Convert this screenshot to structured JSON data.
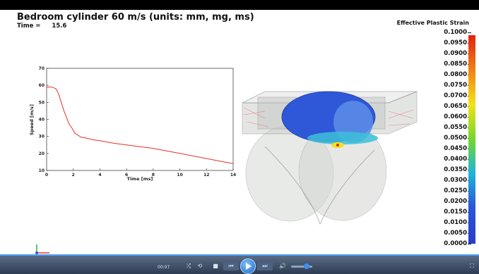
{
  "window": {
    "title": "Bedroom cylinder 60 m/s (units: mm, mg, ms)"
  },
  "time": {
    "label": "Time =",
    "value": "15.6"
  },
  "legend": {
    "title": "Effective Plastic Strain",
    "labels": [
      "0.1000",
      "0.0950",
      "0.0900",
      "0.0850",
      "0.0800",
      "0.0750",
      "0.0700",
      "0.0650",
      "0.0600",
      "0.0550",
      "0.0500",
      "0.0450",
      "0.0400",
      "0.0350",
      "0.0300",
      "0.0250",
      "0.0200",
      "0.0150",
      "0.0100",
      "0.0050",
      "0.0000"
    ],
    "colors": {
      "high": "#e32212",
      "mid": "#73d62e",
      "low": "#2a3cc8"
    }
  },
  "chart_data": {
    "type": "line",
    "title": "",
    "xlabel": "Time [ms]",
    "ylabel": "Speed [m/s]",
    "xlim": [
      0,
      14
    ],
    "ylim": [
      10,
      70
    ],
    "xticks": [
      "0",
      "2",
      "4",
      "6",
      "8",
      "10",
      "12",
      "14"
    ],
    "yticks": [
      "10",
      "20",
      "30",
      "40",
      "50",
      "60",
      "70"
    ],
    "grid": false,
    "series": [
      {
        "color": "#e8302a",
        "x": [
          0,
          0.4,
          0.7,
          0.9,
          1.1,
          1.3,
          1.5,
          1.7,
          1.9,
          2.1,
          2.3,
          2.6,
          3.0,
          3.5,
          4.0,
          5.0,
          6.0,
          7.0,
          8.0,
          9.0,
          10.0,
          11.0,
          12.0,
          13.0,
          14.0
        ],
        "y": [
          59,
          59,
          58,
          55,
          50,
          45,
          41,
          37,
          35,
          32,
          31,
          29.5,
          29,
          28,
          27.5,
          26,
          25,
          24,
          23,
          21.5,
          20,
          18.5,
          17,
          15.5,
          14
        ]
      }
    ]
  },
  "player": {
    "clock": "00:07",
    "repeat_icon": "⟲",
    "shuffle_icon": "⤮",
    "stop_icon": "■",
    "prev_icon": "⏮",
    "next_icon": "⏭",
    "volume_icon": "🔊",
    "fullscreen_icon": "⛶"
  }
}
